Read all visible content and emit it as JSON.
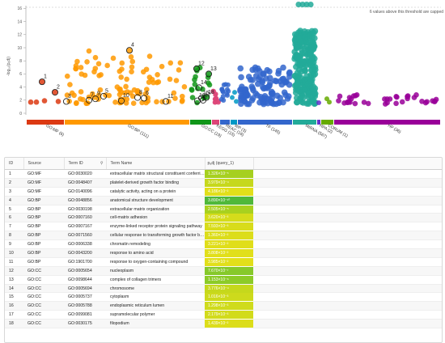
{
  "plot": {
    "y_axis_label": "-log₁₀(pₐdj)",
    "capped_note": "6 values above this threshold are capped",
    "y_ticks": [
      "0",
      "2",
      "4",
      "6",
      "8",
      "10",
      "12",
      "14",
      "16"
    ],
    "categories": [
      {
        "label": "GO:MF (6)",
        "color": "#dc3912"
      },
      {
        "label": "GO:BP (111)",
        "color": "#ff9900"
      },
      {
        "label": "GO:CC (19)",
        "color": "#109618"
      },
      {
        "label": "KEGG (15)",
        "color": "#dd4477"
      },
      {
        "label": "REAC (16)",
        "color": "#3366cc"
      },
      {
        "label": "WP (3)",
        "color": "#0099c6"
      },
      {
        "label": "TF (145)",
        "color": "#3366cc"
      },
      {
        "label": "MIRNA (567)",
        "color": "#22aa99"
      },
      {
        "label": "HPA (2)",
        "color": "#6633cc"
      },
      {
        "label": "CORUM (1)",
        "color": "#66aa00"
      },
      {
        "label": "HP (36)",
        "color": "#990099"
      }
    ],
    "highlight_labels": [
      "1",
      "2",
      "3",
      "4",
      "5",
      "6",
      "7",
      "8",
      "9",
      "10",
      "11",
      "12",
      "13",
      "14",
      "15",
      "16",
      "17",
      "18"
    ]
  },
  "table": {
    "columns": [
      "ID",
      "Source",
      "Term ID",
      "Term Name",
      "pₐdj (query_1)"
    ],
    "filter_icon": "filter-icon",
    "rows": [
      {
        "id": "1",
        "source": "GO:MF",
        "term_id": "GO:0030020",
        "name": "extracellular matrix structural constituent conferrin...",
        "p": "1.326×10⁻⁵",
        "color": "#a6d01f"
      },
      {
        "id": "2",
        "source": "GO:MF",
        "term_id": "GO:0048407",
        "name": "platelet-derived growth factor binding",
        "p": "3.979×10⁻⁴",
        "color": "#c6d81c"
      },
      {
        "id": "3",
        "source": "GO:MF",
        "term_id": "GO:0140096",
        "name": "catalytic activity, acting on a protein",
        "p": "4.186×10⁻²",
        "color": "#e2df1a"
      },
      {
        "id": "4",
        "source": "GO:BP",
        "term_id": "GO:0048856",
        "name": "anatomical structure development",
        "p": "3.890×10⁻¹⁰",
        "color": "#4fb83a"
      },
      {
        "id": "5",
        "source": "GO:BP",
        "term_id": "GO:0030198",
        "name": "extracellular matrix organization",
        "p": "2.505×10⁻⁵",
        "color": "#a8d11f"
      },
      {
        "id": "6",
        "source": "GO:BP",
        "term_id": "GO:0007160",
        "name": "cell-matrix adhesion",
        "p": "3.620×10⁻³",
        "color": "#d5dc1b"
      },
      {
        "id": "7",
        "source": "GO:BP",
        "term_id": "GO:0007167",
        "name": "enzyme-linked receptor protein signaling pathway",
        "p": "7.593×10⁻³",
        "color": "#d8dc1b"
      },
      {
        "id": "8",
        "source": "GO:BP",
        "term_id": "GO:0071560",
        "name": "cellular response to transforming growth factor be...",
        "p": "1.360×10⁻²",
        "color": "#dcdd1a"
      },
      {
        "id": "9",
        "source": "GO:BP",
        "term_id": "GO:0006338",
        "name": "chromatin remodeling",
        "p": "3.221×10⁻²",
        "color": "#e0de1a"
      },
      {
        "id": "10",
        "source": "GO:BP",
        "term_id": "GO:0043200",
        "name": "response to amino acid",
        "p": "3.808×10⁻²",
        "color": "#e1df1a"
      },
      {
        "id": "11",
        "source": "GO:BP",
        "term_id": "GO:1901700",
        "name": "response to oxygen-containing compound",
        "p": "3.985×10⁻²",
        "color": "#e2df1a"
      },
      {
        "id": "12",
        "source": "GO:CC",
        "term_id": "GO:0005654",
        "name": "nucleoplasm",
        "p": "7.670×10⁻⁷",
        "color": "#86c92a"
      },
      {
        "id": "13",
        "source": "GO:CC",
        "term_id": "GO:0098644",
        "name": "complex of collagen trimers",
        "p": "1.153×10⁻⁶",
        "color": "#8ccb28"
      },
      {
        "id": "14",
        "source": "GO:CC",
        "term_id": "GO:0005694",
        "name": "chromosome",
        "p": "3.776×10⁻⁴",
        "color": "#c5d81c"
      },
      {
        "id": "15",
        "source": "GO:CC",
        "term_id": "GO:0005737",
        "name": "cytoplasm",
        "p": "1.016×10⁻³",
        "color": "#cdda1c"
      },
      {
        "id": "16",
        "source": "GO:CC",
        "term_id": "GO:0005788",
        "name": "endoplasmic reticulum lumen",
        "p": "1.298×10⁻³",
        "color": "#cfdb1c"
      },
      {
        "id": "17",
        "source": "GO:CC",
        "term_id": "GO:0099081",
        "name": "supramolecular polymer",
        "p": "2.179×10⁻³",
        "color": "#d2db1b"
      },
      {
        "id": "18",
        "source": "GO:CC",
        "term_id": "GO:0030175",
        "name": "filopodium",
        "p": "1.439×10⁻²",
        "color": "#dcdd1a"
      }
    ]
  }
}
